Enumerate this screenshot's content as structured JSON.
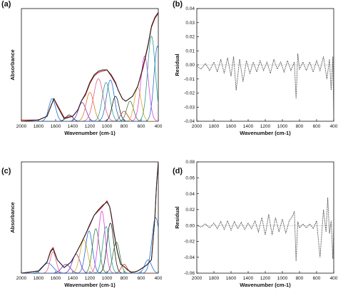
{
  "chart_data": [
    {
      "panel": "(a)",
      "type": "line",
      "xlabel": "Wavenumber (cm-1)",
      "ylabel": "Absorbance",
      "x_reversed": true,
      "xlim": [
        2000,
        400
      ],
      "ylim": [
        0,
        0.9
      ],
      "xticks": [
        "2000",
        "1800",
        "1600",
        "1400",
        "1200",
        "1000",
        "800",
        "600",
        "400"
      ],
      "yticks": [],
      "series": [
        {
          "color": "#d11f1f",
          "x": [
            2000,
            1800,
            1700,
            1650,
            1620,
            1580,
            1500,
            1400,
            1340,
            1300,
            1250,
            1200,
            1150,
            1100,
            1050,
            1000,
            950,
            900,
            870,
            820,
            780,
            700,
            640,
            580,
            520,
            480,
            440,
            420,
            400
          ],
          "values": [
            0.01,
            0.01,
            0.04,
            0.13,
            0.18,
            0.13,
            0.03,
            0.04,
            0.09,
            0.16,
            0.21,
            0.3,
            0.36,
            0.39,
            0.4,
            0.41,
            0.36,
            0.3,
            0.25,
            0.18,
            0.16,
            0.2,
            0.28,
            0.42,
            0.6,
            0.75,
            0.82,
            0.84,
            0.86
          ]
        },
        {
          "color": "#1c1c1c",
          "x": [
            2000,
            1800,
            1700,
            1650,
            1620,
            1580,
            1500,
            1400,
            1340,
            1300,
            1250,
            1200,
            1150,
            1100,
            1050,
            1000,
            950,
            900,
            870,
            820,
            780,
            700,
            640,
            580,
            520,
            480,
            440,
            420,
            400
          ],
          "values": [
            0.0,
            0.01,
            0.04,
            0.13,
            0.18,
            0.12,
            0.02,
            0.04,
            0.09,
            0.16,
            0.22,
            0.31,
            0.37,
            0.4,
            0.41,
            0.41,
            0.37,
            0.31,
            0.25,
            0.18,
            0.16,
            0.2,
            0.28,
            0.43,
            0.61,
            0.76,
            0.83,
            0.85,
            0.87
          ]
        }
      ],
      "peaks": [
        {
          "center": 1640,
          "height": 0.18,
          "width": 40,
          "color": "#1f6fd1"
        },
        {
          "center": 1440,
          "height": 0.05,
          "width": 40,
          "color": "#1c1c1c"
        },
        {
          "center": 1290,
          "height": 0.15,
          "width": 45,
          "color": "#7a2fd0"
        },
        {
          "center": 1200,
          "height": 0.23,
          "width": 45,
          "color": "#e07a1f"
        },
        {
          "center": 1100,
          "height": 0.34,
          "width": 55,
          "color": "#e65c8c"
        },
        {
          "center": 1010,
          "height": 0.31,
          "width": 45,
          "color": "#2a9d8f"
        },
        {
          "center": 960,
          "height": 0.33,
          "width": 45,
          "color": "#1f6fd1"
        },
        {
          "center": 900,
          "height": 0.2,
          "width": 40,
          "color": "#1c1c1c"
        },
        {
          "center": 800,
          "height": 0.08,
          "width": 40,
          "color": "#c0392b"
        },
        {
          "center": 730,
          "height": 0.16,
          "width": 40,
          "color": "#3b7f3b"
        },
        {
          "center": 640,
          "height": 0.27,
          "width": 40,
          "color": "#e0a91f"
        },
        {
          "center": 560,
          "height": 0.52,
          "width": 45,
          "color": "#e040e0"
        },
        {
          "center": 480,
          "height": 0.68,
          "width": 45,
          "color": "#2a9d8f"
        },
        {
          "center": 410,
          "height": 0.6,
          "width": 40,
          "color": "#1f6fd1"
        }
      ]
    },
    {
      "panel": "(b)",
      "type": "line",
      "xlabel": "Wavenumber (cm-1)",
      "ylabel": "Residual",
      "x_reversed": true,
      "xlim": [
        2000,
        400
      ],
      "ylim": [
        -0.04,
        0.04
      ],
      "xticks": [
        "2000",
        "1800",
        "1600",
        "1400",
        "1200",
        "1000",
        "800",
        "600",
        "400"
      ],
      "yticks": [
        "-0.04",
        "-0.03",
        "-0.02",
        "-0.01",
        "0.00",
        "0.01",
        "0.02",
        "0.03",
        "0.04"
      ],
      "series": [
        {
          "color": "#444444",
          "dashed": true,
          "x": [
            2000,
            1950,
            1900,
            1850,
            1800,
            1760,
            1720,
            1680,
            1640,
            1600,
            1570,
            1540,
            1500,
            1460,
            1420,
            1380,
            1340,
            1300,
            1260,
            1220,
            1180,
            1140,
            1100,
            1060,
            1020,
            980,
            940,
            900,
            860,
            840,
            820,
            800,
            760,
            720,
            680,
            640,
            600,
            560,
            520,
            480,
            450,
            430,
            410,
            400
          ],
          "values": [
            -0.001,
            -0.003,
            0.001,
            -0.004,
            0.002,
            -0.005,
            0.004,
            -0.006,
            0.005,
            -0.008,
            0.006,
            -0.018,
            0.004,
            -0.012,
            0.003,
            -0.006,
            0.002,
            -0.005,
            0.003,
            -0.004,
            0.002,
            -0.006,
            0.004,
            -0.003,
            0.002,
            -0.005,
            0.003,
            -0.004,
            0.002,
            -0.024,
            0.008,
            -0.003,
            0.002,
            -0.004,
            0.002,
            -0.005,
            0.003,
            -0.004,
            0.006,
            -0.01,
            0.004,
            -0.018,
            0.006,
            -0.038
          ]
        }
      ]
    },
    {
      "panel": "(c)",
      "type": "line",
      "xlabel": "Wavenumber (cm-1)",
      "ylabel": "Absorbance",
      "x_reversed": true,
      "xlim": [
        2000,
        400
      ],
      "ylim": [
        0,
        1.0
      ],
      "xticks": [
        "2000",
        "1800",
        "1600",
        "1400",
        "1200",
        "1000",
        "800",
        "600",
        "400"
      ],
      "yticks": [],
      "series": [
        {
          "color": "#d11f1f",
          "x": [
            2000,
            1800,
            1700,
            1660,
            1630,
            1580,
            1500,
            1420,
            1360,
            1300,
            1250,
            1200,
            1150,
            1100,
            1050,
            1000,
            970,
            950,
            920,
            880,
            840,
            800,
            760,
            720,
            680,
            640,
            600,
            540,
            480,
            440,
            420,
            400
          ],
          "values": [
            0.0,
            0.02,
            0.1,
            0.2,
            0.23,
            0.12,
            0.05,
            0.1,
            0.18,
            0.27,
            0.35,
            0.43,
            0.52,
            0.56,
            0.6,
            0.65,
            0.6,
            0.53,
            0.38,
            0.2,
            0.08,
            0.06,
            0.03,
            0.01,
            0.01,
            0.02,
            0.04,
            0.07,
            0.12,
            0.5,
            0.8,
            1.0
          ]
        },
        {
          "color": "#1c1c1c",
          "x": [
            2000,
            1800,
            1700,
            1660,
            1630,
            1580,
            1500,
            1420,
            1360,
            1300,
            1250,
            1200,
            1150,
            1100,
            1050,
            1000,
            970,
            950,
            920,
            880,
            840,
            800,
            760,
            720,
            680,
            640,
            600,
            540,
            480,
            440,
            420,
            400
          ],
          "values": [
            0.0,
            0.02,
            0.1,
            0.19,
            0.22,
            0.12,
            0.05,
            0.1,
            0.18,
            0.27,
            0.35,
            0.44,
            0.52,
            0.57,
            0.61,
            0.64,
            0.6,
            0.52,
            0.37,
            0.2,
            0.08,
            0.06,
            0.03,
            0.01,
            0.01,
            0.02,
            0.04,
            0.07,
            0.12,
            0.5,
            0.8,
            1.0
          ]
        }
      ],
      "peaks": [
        {
          "center": 1690,
          "height": 0.09,
          "width": 60,
          "color": "#1f6fd1"
        },
        {
          "center": 1630,
          "height": 0.19,
          "width": 35,
          "color": "#e65c8c"
        },
        {
          "center": 1480,
          "height": 0.08,
          "width": 50,
          "color": "#7a2fd0"
        },
        {
          "center": 1360,
          "height": 0.17,
          "width": 45,
          "color": "#7a2fd0"
        },
        {
          "center": 1270,
          "height": 0.3,
          "width": 45,
          "color": "#e0a91f"
        },
        {
          "center": 1210,
          "height": 0.38,
          "width": 40,
          "color": "#1f6fd1"
        },
        {
          "center": 1130,
          "height": 0.4,
          "width": 40,
          "color": "#3b7f3b"
        },
        {
          "center": 1060,
          "height": 0.56,
          "width": 40,
          "color": "#e040e0"
        },
        {
          "center": 1010,
          "height": 0.42,
          "width": 40,
          "color": "#2a9d8f"
        },
        {
          "center": 960,
          "height": 0.45,
          "width": 40,
          "color": "#1c1c1c"
        },
        {
          "center": 890,
          "height": 0.28,
          "width": 40,
          "color": "#3b7f3b"
        },
        {
          "center": 800,
          "height": 0.08,
          "width": 35,
          "color": "#c0392b"
        },
        {
          "center": 520,
          "height": 0.12,
          "width": 40,
          "color": "#1f6fd1"
        },
        {
          "center": 430,
          "height": 0.5,
          "width": 45,
          "color": "#1f6fd1"
        }
      ]
    },
    {
      "panel": "(d)",
      "type": "line",
      "xlabel": "Wavenumber (cm-1)",
      "ylabel": "Residual",
      "x_reversed": true,
      "xlim": [
        2000,
        400
      ],
      "ylim": [
        -0.06,
        0.08
      ],
      "xticks": [
        "2000",
        "1800",
        "1600",
        "1400",
        "1200",
        "1000",
        "800",
        "600",
        "400"
      ],
      "yticks": [
        "-0.06",
        "-0.04",
        "-0.02",
        "0.00",
        "0.02",
        "0.04",
        "0.06",
        "0.08"
      ],
      "series": [
        {
          "color": "#444444",
          "dashed": true,
          "x": [
            2000,
            1950,
            1900,
            1850,
            1800,
            1760,
            1720,
            1680,
            1640,
            1600,
            1560,
            1520,
            1480,
            1440,
            1400,
            1360,
            1320,
            1280,
            1240,
            1200,
            1160,
            1120,
            1080,
            1040,
            1000,
            960,
            920,
            880,
            860,
            840,
            820,
            800,
            760,
            720,
            680,
            640,
            600,
            560,
            520,
            490,
            470,
            450,
            430,
            410,
            400
          ],
          "values": [
            0.0,
            -0.002,
            0.002,
            -0.003,
            0.003,
            -0.004,
            0.005,
            -0.005,
            0.006,
            -0.006,
            0.005,
            -0.004,
            0.004,
            -0.005,
            0.003,
            -0.004,
            0.006,
            -0.008,
            0.01,
            -0.012,
            0.014,
            -0.012,
            0.01,
            -0.008,
            0.008,
            -0.01,
            0.006,
            0.012,
            0.018,
            -0.045,
            0.005,
            -0.003,
            0.002,
            -0.003,
            0.002,
            -0.004,
            0.006,
            -0.04,
            0.02,
            -0.008,
            0.035,
            -0.01,
            0.006,
            -0.042,
            0.0
          ]
        }
      ]
    }
  ]
}
